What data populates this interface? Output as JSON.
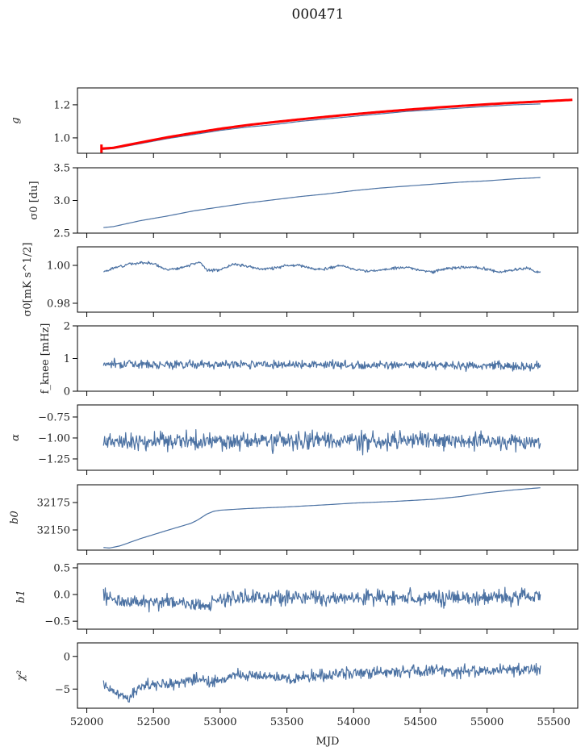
{
  "chart_data": {
    "type": "line",
    "title": "000471",
    "xlabel": "MJD",
    "xlim": [
      51930,
      55680
    ],
    "xticks": [
      52000,
      52500,
      53000,
      53500,
      54000,
      54500,
      55000,
      55500
    ],
    "xtick_labels": [
      "52000",
      "52500",
      "53000",
      "53500",
      "54000",
      "54500",
      "55000",
      "55500"
    ],
    "series_color": "#4c72a3",
    "fit_color": "#ff0000",
    "panels": [
      {
        "id": "g",
        "ylabel": "g",
        "ylim": [
          0.907,
          1.302
        ],
        "yticks": [
          1.0,
          1.2
        ],
        "ytick_labels": [
          "1.0",
          "1.2"
        ],
        "series": [
          {
            "name": "g",
            "color": "#4c72a3",
            "kind": "smooth",
            "x": [
              52120,
              52200,
              52400,
              52600,
              52800,
              53000,
              53200,
              53400,
              53600,
              53800,
              54000,
              54200,
              54400,
              54600,
              54800,
              55000,
              55200,
              55400
            ],
            "y": [
              0.93,
              0.935,
              0.965,
              0.995,
              1.02,
              1.045,
              1.065,
              1.08,
              1.1,
              1.115,
              1.13,
              1.145,
              1.16,
              1.17,
              1.18,
              1.19,
              1.2,
              1.205
            ]
          },
          {
            "name": "g fit",
            "color": "#ff0000",
            "kind": "fit",
            "x": [
              52110,
              52200,
              52400,
              52600,
              52800,
              53000,
              53200,
              53400,
              53600,
              53800,
              54000,
              54200,
              54400,
              54600,
              54800,
              55000,
              55200,
              55400,
              55640
            ],
            "y": [
              0.935,
              0.94,
              0.972,
              1.003,
              1.03,
              1.055,
              1.077,
              1.095,
              1.112,
              1.128,
              1.143,
              1.157,
              1.17,
              1.182,
              1.193,
              1.203,
              1.212,
              1.22,
              1.23
            ],
            "errorbar": {
              "x": 52110,
              "y": 0.935,
              "err": 0.025
            }
          }
        ]
      },
      {
        "id": "sigma0-du",
        "ylabel": "σ0 [du]",
        "ylim": [
          2.5,
          3.5
        ],
        "yticks": [
          2.5,
          3.0,
          3.5
        ],
        "ytick_labels": [
          "2.5",
          "3.0",
          "3.5"
        ],
        "series": [
          {
            "name": "sigma0 du",
            "color": "#4c72a3",
            "kind": "smooth",
            "x": [
              52125,
              52200,
              52400,
              52600,
              52800,
              53000,
              53200,
              53400,
              53600,
              53800,
              54000,
              54200,
              54400,
              54600,
              54800,
              55000,
              55200,
              55400
            ],
            "y": [
              2.585,
              2.6,
              2.69,
              2.76,
              2.84,
              2.9,
              2.96,
              3.01,
              3.06,
              3.1,
              3.15,
              3.19,
              3.22,
              3.25,
              3.28,
              3.3,
              3.33,
              3.35
            ]
          }
        ]
      },
      {
        "id": "sigma0-mk",
        "ylabel": "σ0[mK s^1/2]",
        "ylim": [
          0.9753,
          1.0098
        ],
        "yticks": [
          0.98,
          1.0
        ],
        "ytick_labels": [
          "0.98",
          "1.00"
        ],
        "series": [
          {
            "name": "sigma0 mK",
            "color": "#4c72a3",
            "kind": "noisy",
            "noise": 0.0005,
            "seed": 3,
            "x": [
              52125,
              52200,
              52300,
              52400,
              52500,
              52600,
              52700,
              52800,
              52850,
              52900,
              53000,
              53100,
              53200,
              53300,
              53400,
              53500,
              53600,
              53700,
              53800,
              53900,
              54000,
              54100,
              54200,
              54300,
              54400,
              54500,
              54600,
              54700,
              54800,
              54900,
              55000,
              55100,
              55200,
              55300,
              55400
            ],
            "y": [
              0.9965,
              0.9985,
              1.0005,
              1.0015,
              1.001,
              0.9975,
              0.9985,
              1.001,
              1.0015,
              0.9975,
              0.9975,
              1.001,
              0.9995,
              0.998,
              0.9985,
              1.0,
              1.0,
              0.998,
              0.998,
              1.0,
              0.998,
              0.997,
              0.9975,
              0.9985,
              0.999,
              0.9975,
              0.9965,
              0.9985,
              0.999,
              0.999,
              0.998,
              0.9965,
              0.9975,
              0.9985,
              0.996
            ]
          }
        ]
      },
      {
        "id": "fknee",
        "ylabel": "f_knee [mHz]",
        "ylim": [
          0,
          2
        ],
        "yticks": [
          0,
          1,
          2
        ],
        "ytick_labels": [
          "0",
          "1",
          "2"
        ],
        "series": [
          {
            "name": "fknee",
            "color": "#4c72a3",
            "kind": "noisy",
            "noise": 0.09,
            "seed": 7,
            "x": [
              52125,
              52500,
              53000,
              53500,
              54000,
              54500,
              55000,
              55400
            ],
            "y": [
              0.85,
              0.83,
              0.82,
              0.83,
              0.8,
              0.8,
              0.78,
              0.75
            ]
          }
        ]
      },
      {
        "id": "alpha",
        "ylabel": "α",
        "ylim": [
          -1.385,
          -0.606
        ],
        "yticks": [
          -1.25,
          -1.0,
          -0.75
        ],
        "ytick_labels": [
          "−1.25",
          "−1.00",
          "−0.75"
        ],
        "series": [
          {
            "name": "alpha",
            "color": "#4c72a3",
            "kind": "noisy",
            "noise": 0.075,
            "seed": 11,
            "x": [
              52125,
              52500,
              53000,
              53500,
              54000,
              54500,
              55000,
              55400
            ],
            "y": [
              -1.05,
              -1.04,
              -1.04,
              -1.03,
              -1.04,
              -1.03,
              -1.04,
              -1.05
            ]
          }
        ]
      },
      {
        "id": "b0",
        "ylabel": "b0",
        "ylim": [
          32131.6,
          32191.2
        ],
        "yticks": [
          32150,
          32175
        ],
        "ytick_labels": [
          "32150",
          "32175"
        ],
        "series": [
          {
            "name": "b0",
            "color": "#4c72a3",
            "kind": "smooth",
            "x": [
              52125,
              52170,
              52250,
              52400,
              52600,
              52780,
              52830,
              52900,
              52950,
              53000,
              53200,
              53500,
              53800,
              54000,
              54300,
              54600,
              54800,
              55000,
              55200,
              55400
            ],
            "y": [
              32134.0,
              32133.5,
              32135.5,
              32142.0,
              32149.5,
              32156.0,
              32159.0,
              32164.5,
              32167.0,
              32168.0,
              32169.5,
              32171.0,
              32173.0,
              32174.5,
              32176.0,
              32178.0,
              32180.5,
              32184.0,
              32186.5,
              32188.5
            ]
          }
        ]
      },
      {
        "id": "b1",
        "ylabel": "b1",
        "ylim": [
          -0.649,
          0.575
        ],
        "yticks": [
          -0.5,
          0.0,
          0.5
        ],
        "ytick_labels": [
          "−0.5",
          "0.0",
          "0.5"
        ],
        "series": [
          {
            "name": "b1",
            "color": "#4c72a3",
            "kind": "noisy",
            "noise": 0.1,
            "seed": 19,
            "x": [
              52125,
              52200,
              52400,
              52600,
              52800,
              52900,
              53000,
              53200,
              53500,
              54000,
              54500,
              55000,
              55400
            ],
            "y": [
              0.0,
              -0.1,
              -0.15,
              -0.12,
              -0.18,
              -0.2,
              -0.08,
              -0.05,
              -0.05,
              -0.05,
              -0.06,
              -0.05,
              -0.05
            ]
          }
        ]
      },
      {
        "id": "chi2",
        "ylabel": "χ²",
        "ylim": [
          -7.93,
          2.07
        ],
        "yticks": [
          -5,
          0
        ],
        "ytick_labels": [
          "−5",
          "0"
        ],
        "series": [
          {
            "name": "chi2",
            "color": "#4c72a3",
            "kind": "noisy",
            "noise": 0.65,
            "seed": 23,
            "x": [
              52125,
              52200,
              52300,
              52450,
              52600,
              52800,
              52950,
              53100,
              53300,
              53500,
              54000,
              54500,
              55000,
              55400
            ],
            "y": [
              -4.5,
              -5.5,
              -6.2,
              -4.3,
              -4.2,
              -3.5,
              -4.0,
              -3.0,
              -2.8,
              -3.4,
              -2.6,
              -2.3,
              -2.2,
              -2.0
            ]
          }
        ]
      }
    ]
  }
}
